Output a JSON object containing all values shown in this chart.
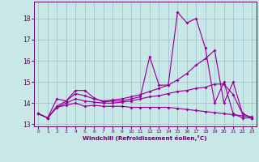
{
  "xlabel": "Windchill (Refroidissement éolien,°C)",
  "bg_color": "#c8e8e8",
  "line_color": "#990099",
  "grid_color": "#99bbcc",
  "xlim": [
    -0.5,
    23.5
  ],
  "ylim": [
    12.9,
    18.8
  ],
  "yticks": [
    13,
    14,
    15,
    16,
    17,
    18
  ],
  "xticks": [
    0,
    1,
    2,
    3,
    4,
    5,
    6,
    7,
    8,
    9,
    10,
    11,
    12,
    13,
    14,
    15,
    16,
    17,
    18,
    19,
    20,
    21,
    22,
    23
  ],
  "series": [
    {
      "x": [
        0,
        1,
        2,
        3,
        4,
        5,
        6,
        7,
        8,
        9,
        10,
        11,
        12,
        13,
        14,
        15,
        16,
        17,
        18,
        19,
        20,
        21,
        22,
        23
      ],
      "y": [
        13.5,
        13.3,
        13.8,
        13.9,
        14.0,
        13.85,
        13.9,
        13.85,
        13.85,
        13.85,
        13.8,
        13.8,
        13.8,
        13.8,
        13.8,
        13.75,
        13.7,
        13.65,
        13.6,
        13.55,
        13.5,
        13.45,
        13.4,
        13.35
      ]
    },
    {
      "x": [
        0,
        1,
        2,
        3,
        4,
        5,
        6,
        7,
        8,
        9,
        10,
        11,
        12,
        13,
        14,
        15,
        16,
        17,
        18,
        19,
        20,
        21,
        22,
        23
      ],
      "y": [
        13.5,
        13.3,
        13.8,
        14.0,
        14.2,
        14.1,
        14.05,
        14.0,
        14.0,
        14.05,
        14.1,
        14.2,
        14.3,
        14.35,
        14.45,
        14.55,
        14.6,
        14.7,
        14.75,
        14.9,
        14.9,
        14.4,
        13.5,
        13.3
      ]
    },
    {
      "x": [
        0,
        1,
        2,
        3,
        4,
        5,
        6,
        7,
        8,
        9,
        10,
        11,
        12,
        13,
        14,
        15,
        16,
        17,
        18,
        19,
        20,
        21,
        22,
        23
      ],
      "y": [
        13.5,
        13.3,
        13.85,
        14.1,
        14.45,
        14.35,
        14.2,
        14.1,
        14.15,
        14.2,
        14.3,
        14.4,
        14.55,
        14.7,
        14.85,
        15.1,
        15.4,
        15.8,
        16.1,
        16.5,
        14.0,
        15.0,
        13.5,
        13.3
      ]
    },
    {
      "x": [
        0,
        1,
        2,
        3,
        4,
        5,
        6,
        7,
        8,
        9,
        10,
        11,
        12,
        13,
        14,
        15,
        16,
        17,
        18,
        19,
        20,
        21,
        22,
        23
      ],
      "y": [
        13.5,
        13.3,
        14.2,
        14.1,
        14.6,
        14.6,
        14.25,
        14.05,
        14.1,
        14.1,
        14.2,
        14.3,
        16.2,
        14.85,
        14.85,
        18.3,
        17.8,
        18.0,
        16.6,
        14.0,
        15.0,
        13.5,
        13.3,
        13.3
      ]
    }
  ]
}
